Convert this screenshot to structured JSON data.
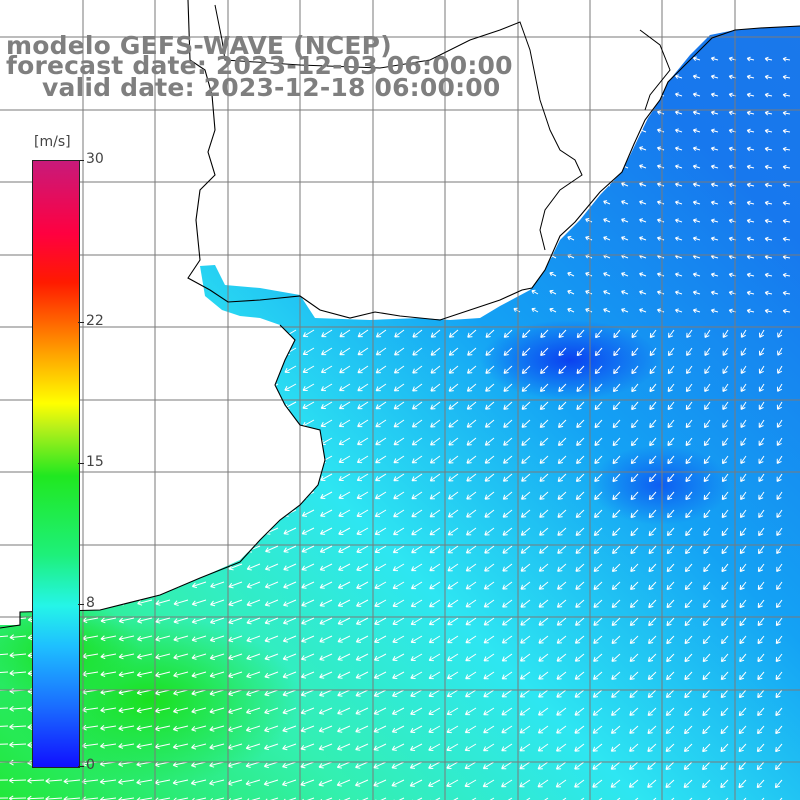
{
  "title": {
    "model": "modelo GEFS-WAVE (NCEP)",
    "forecast": "forecast date: 2023-12-03 06:00:00",
    "valid": "valid date: 2023-12-18 06:00:00"
  },
  "legend": {
    "unit": "[m/s]",
    "ticks": [
      {
        "label": "30",
        "value": 30
      },
      {
        "label": "22",
        "value": 22
      },
      {
        "label": "15",
        "value": 15
      },
      {
        "label": "8",
        "value": 8
      },
      {
        "label": "0",
        "value": 0
      }
    ]
  },
  "colors": {
    "land": "#ffffff",
    "coast": "#000000",
    "grid": "#7a7a7a",
    "arrow": "#ffffff",
    "title": "#7f7f7f"
  },
  "map": {
    "variable": "wind speed and direction",
    "arrow_glyph": "arrow-icon"
  }
}
